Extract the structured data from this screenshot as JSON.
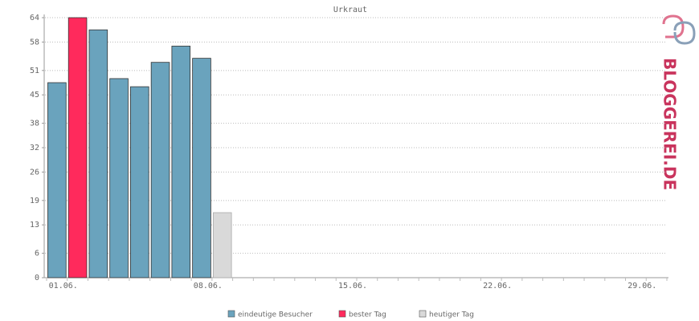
{
  "chart_data": {
    "type": "bar",
    "title": "Urkraut",
    "categories": [
      "01.06.",
      null,
      null,
      null,
      null,
      null,
      null,
      "08.06.",
      null,
      null,
      null,
      null,
      null,
      null,
      "15.06.",
      null,
      null,
      null,
      null,
      null,
      null,
      "22.06.",
      null,
      null,
      null,
      null,
      null,
      null,
      "29.06.",
      null
    ],
    "series": [
      {
        "name": "eindeutige Besucher",
        "color": "#6aa3bd",
        "values": [
          48,
          null,
          61,
          49,
          47,
          53,
          57,
          54,
          null,
          null,
          null,
          null,
          null,
          null,
          null,
          null,
          null,
          null,
          null,
          null,
          null,
          null,
          null,
          null,
          null,
          null,
          null,
          null,
          null,
          null
        ]
      },
      {
        "name": "bester Tag",
        "color": "#ff2a5c",
        "values": [
          null,
          64,
          null,
          null,
          null,
          null,
          null,
          null,
          null,
          null,
          null,
          null,
          null,
          null,
          null,
          null,
          null,
          null,
          null,
          null,
          null,
          null,
          null,
          null,
          null,
          null,
          null,
          null,
          null,
          null
        ]
      },
      {
        "name": "heutiger Tag",
        "color": "#d9d9d9",
        "values": [
          null,
          null,
          null,
          null,
          null,
          null,
          null,
          null,
          16,
          null,
          null,
          null,
          null,
          null,
          null,
          null,
          null,
          null,
          null,
          null,
          null,
          null,
          null,
          null,
          null,
          null,
          null,
          null,
          null,
          null
        ]
      }
    ],
    "ylim": [
      0,
      64
    ],
    "yticks": [
      0,
      6,
      13,
      19,
      26,
      32,
      38,
      45,
      51,
      58,
      64
    ],
    "grid": true,
    "logo": "BLOGGEREI.DE"
  }
}
